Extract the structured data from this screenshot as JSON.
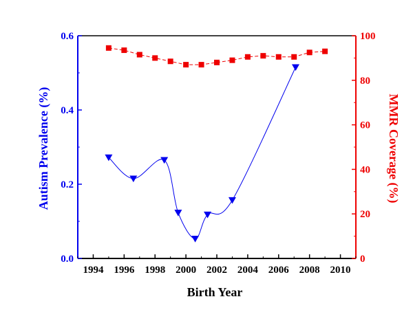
{
  "chart_data": {
    "type": "line",
    "xlabel": "Birth Year",
    "ylabel_left": "Autism Prevalence (%)",
    "ylabel_right": "MMR Coverage (%)",
    "xlim": [
      1993,
      2011
    ],
    "xticks": [
      1994,
      1996,
      1998,
      2000,
      2002,
      2004,
      2006,
      2008,
      2010
    ],
    "ylim_left": [
      0,
      0.6
    ],
    "yticks_left": [
      "0.0",
      "0.2",
      "0.4",
      "0.6"
    ],
    "ylim_right": [
      0,
      100
    ],
    "yticks_right": [
      "0",
      "20",
      "40",
      "60",
      "80",
      "100"
    ],
    "grid": false,
    "legend": "none",
    "series": [
      {
        "axis": "left",
        "marker": "triangle-down",
        "line": "smooth-fit",
        "color": "#0000ee",
        "x": [
          1995.0,
          1996.6,
          1998.6,
          1999.5,
          2000.6,
          2001.4,
          2003.0,
          2007.1
        ],
        "y": [
          0.272,
          0.215,
          0.265,
          0.123,
          0.053,
          0.118,
          0.157,
          0.515
        ]
      },
      {
        "axis": "right",
        "marker": "square",
        "line": "dashed",
        "color": "#ee0000",
        "x": [
          1995,
          1996,
          1997,
          1998,
          1999,
          2000,
          2001,
          2002,
          2003,
          2004,
          2005,
          2006,
          2007,
          2008,
          2009
        ],
        "y": [
          94.5,
          93.5,
          91.5,
          90.0,
          88.5,
          87.0,
          87.0,
          88.0,
          89.0,
          90.5,
          91.0,
          90.5,
          90.5,
          92.5,
          93.0
        ]
      }
    ]
  }
}
